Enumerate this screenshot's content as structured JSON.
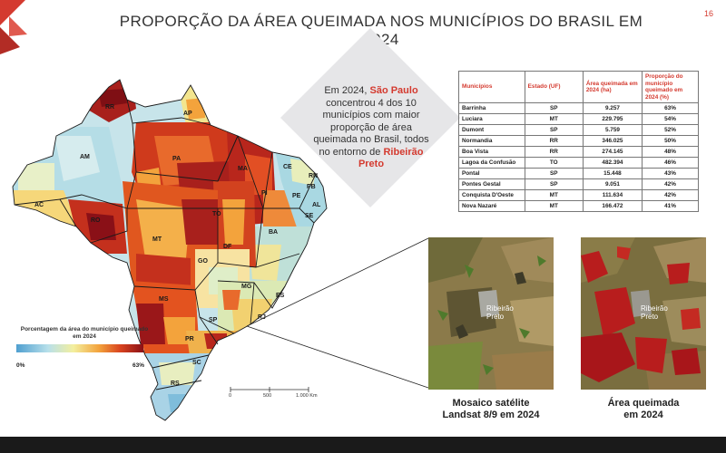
{
  "page": {
    "title": "PROPORÇÃO DA ÁREA QUEIMADA NOS MUNICÍPIOS DO BRASIL EM 2024",
    "page_number": "16",
    "brand_color": "#d43a2f"
  },
  "callout": {
    "part1": "Em 2024,",
    "highlight1": "São Paulo",
    "part2": "concentrou 4 dos 10 municípios com maior proporção de área queimada no Brasil, todos no entorno de",
    "highlight2": "Ribeirão Preto"
  },
  "table": {
    "headers": [
      "Municípios",
      "Estado (UF)",
      "Área queimada em 2024 (ha)",
      "Proporção do município queimado em 2024 (%)"
    ],
    "rows": [
      [
        "Barrinha",
        "SP",
        "9.257",
        "63%"
      ],
      [
        "Luciara",
        "MT",
        "229.795",
        "54%"
      ],
      [
        "Dumont",
        "SP",
        "5.759",
        "52%"
      ],
      [
        "Normandia",
        "RR",
        "346.025",
        "50%"
      ],
      [
        "Boa Vista",
        "RR",
        "274.145",
        "48%"
      ],
      [
        "Lagoa da Confusão",
        "TO",
        "482.394",
        "46%"
      ],
      [
        "Pontal",
        "SP",
        "15.448",
        "43%"
      ],
      [
        "Pontes Gestal",
        "SP",
        "9.051",
        "42%"
      ],
      [
        "Conquista D'Oeste",
        "MT",
        "111.634",
        "42%"
      ],
      [
        "Nova Nazaré",
        "MT",
        "166.472",
        "41%"
      ]
    ]
  },
  "map": {
    "states": [
      "RR",
      "AP",
      "AM",
      "PA",
      "MA",
      "CE",
      "RN",
      "PB",
      "PE",
      "AL",
      "SE",
      "PI",
      "AC",
      "RO",
      "TO",
      "BA",
      "MT",
      "DF",
      "GO",
      "MG",
      "ES",
      "MS",
      "SP",
      "RJ",
      "PR",
      "SC",
      "RS"
    ],
    "legend": {
      "title": "Porcentagem da área do município queimado em 2024",
      "min": "0%",
      "max": "63%",
      "colors": [
        "#4f9fd0",
        "#b8e0ea",
        "#f3ef9e",
        "#f3a33c",
        "#d8431f",
        "#8a1017"
      ]
    },
    "scale_labels": [
      "0",
      "500",
      "1.000 Km"
    ]
  },
  "panels": [
    {
      "place_label": "Ribeirão Preto",
      "caption_line1": "Mosaico satélite",
      "caption_line2": "Landsat 8/9 em 2024"
    },
    {
      "place_label": "Ribeirão Preto",
      "caption_line1": "Área queimada",
      "caption_line2": "em 2024"
    }
  ]
}
